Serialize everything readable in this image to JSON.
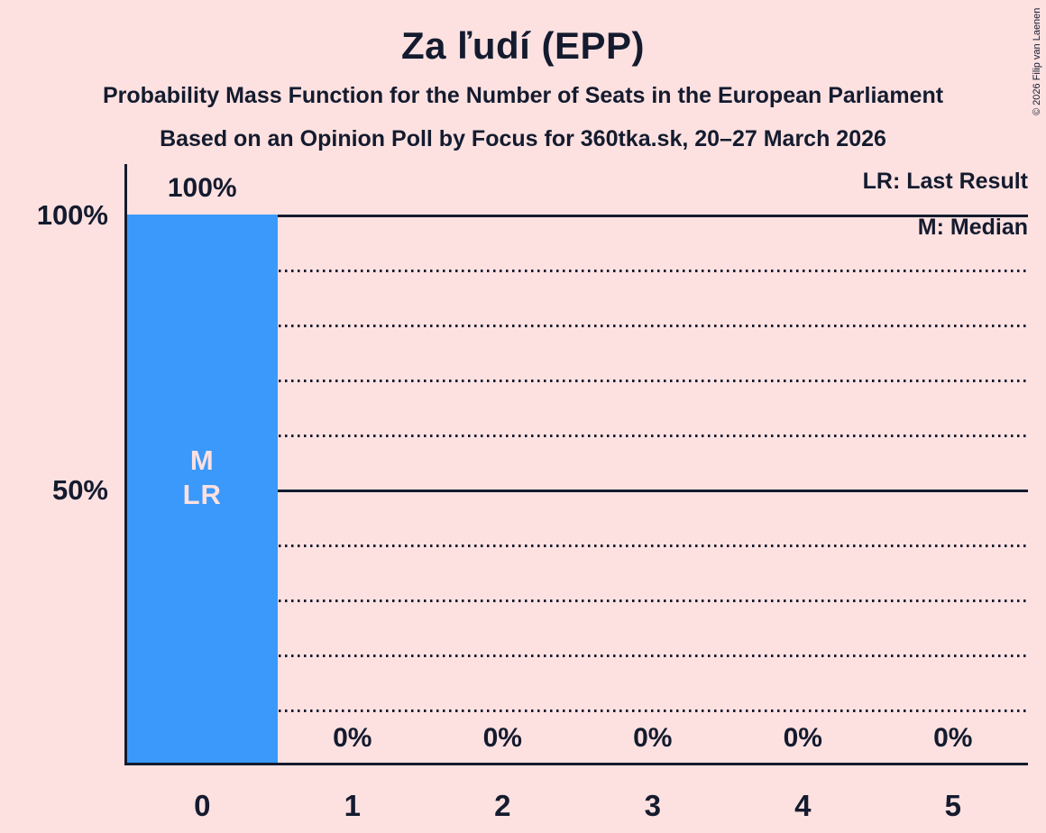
{
  "header": {
    "title": "Za ľudí (EPP)",
    "subtitle1": "Probability Mass Function for the Number of Seats in the European Parliament",
    "subtitle2": "Based on an Opinion Poll by Focus for 360tka.sk, 20–27 March 2026",
    "copyright": "© 2026 Filip van Laenen"
  },
  "legend": {
    "lr": "LR: Last Result",
    "m": "M: Median"
  },
  "colors": {
    "background": "#fde1e1",
    "bar": "#3a99fb",
    "ink": "#141b2e"
  },
  "chart_data": {
    "type": "bar",
    "title": "Za ľudí (EPP)",
    "categories": [
      "0",
      "1",
      "2",
      "3",
      "4",
      "5"
    ],
    "values": [
      100,
      0,
      0,
      0,
      0,
      0
    ],
    "value_labels": [
      "100%",
      "0%",
      "0%",
      "0%",
      "0%",
      "0%"
    ],
    "bar_annotations": [
      {
        "index": 0,
        "lines": [
          "M",
          "LR"
        ]
      }
    ],
    "y_axis": {
      "ylim": [
        0,
        100
      ],
      "ticks": [
        {
          "pct": 100,
          "label": "100%"
        },
        {
          "pct": 50,
          "label": "50%"
        }
      ]
    },
    "gridlines": [
      {
        "pct": 100,
        "style": "solid"
      },
      {
        "pct": 90,
        "style": "dotted"
      },
      {
        "pct": 80,
        "style": "dotted"
      },
      {
        "pct": 70,
        "style": "dotted"
      },
      {
        "pct": 60,
        "style": "dotted"
      },
      {
        "pct": 50,
        "style": "solid"
      },
      {
        "pct": 40,
        "style": "dotted"
      },
      {
        "pct": 30,
        "style": "dotted"
      },
      {
        "pct": 20,
        "style": "dotted"
      },
      {
        "pct": 10,
        "style": "dotted"
      }
    ],
    "legend_position": "top-right",
    "grid": "horizontal"
  }
}
